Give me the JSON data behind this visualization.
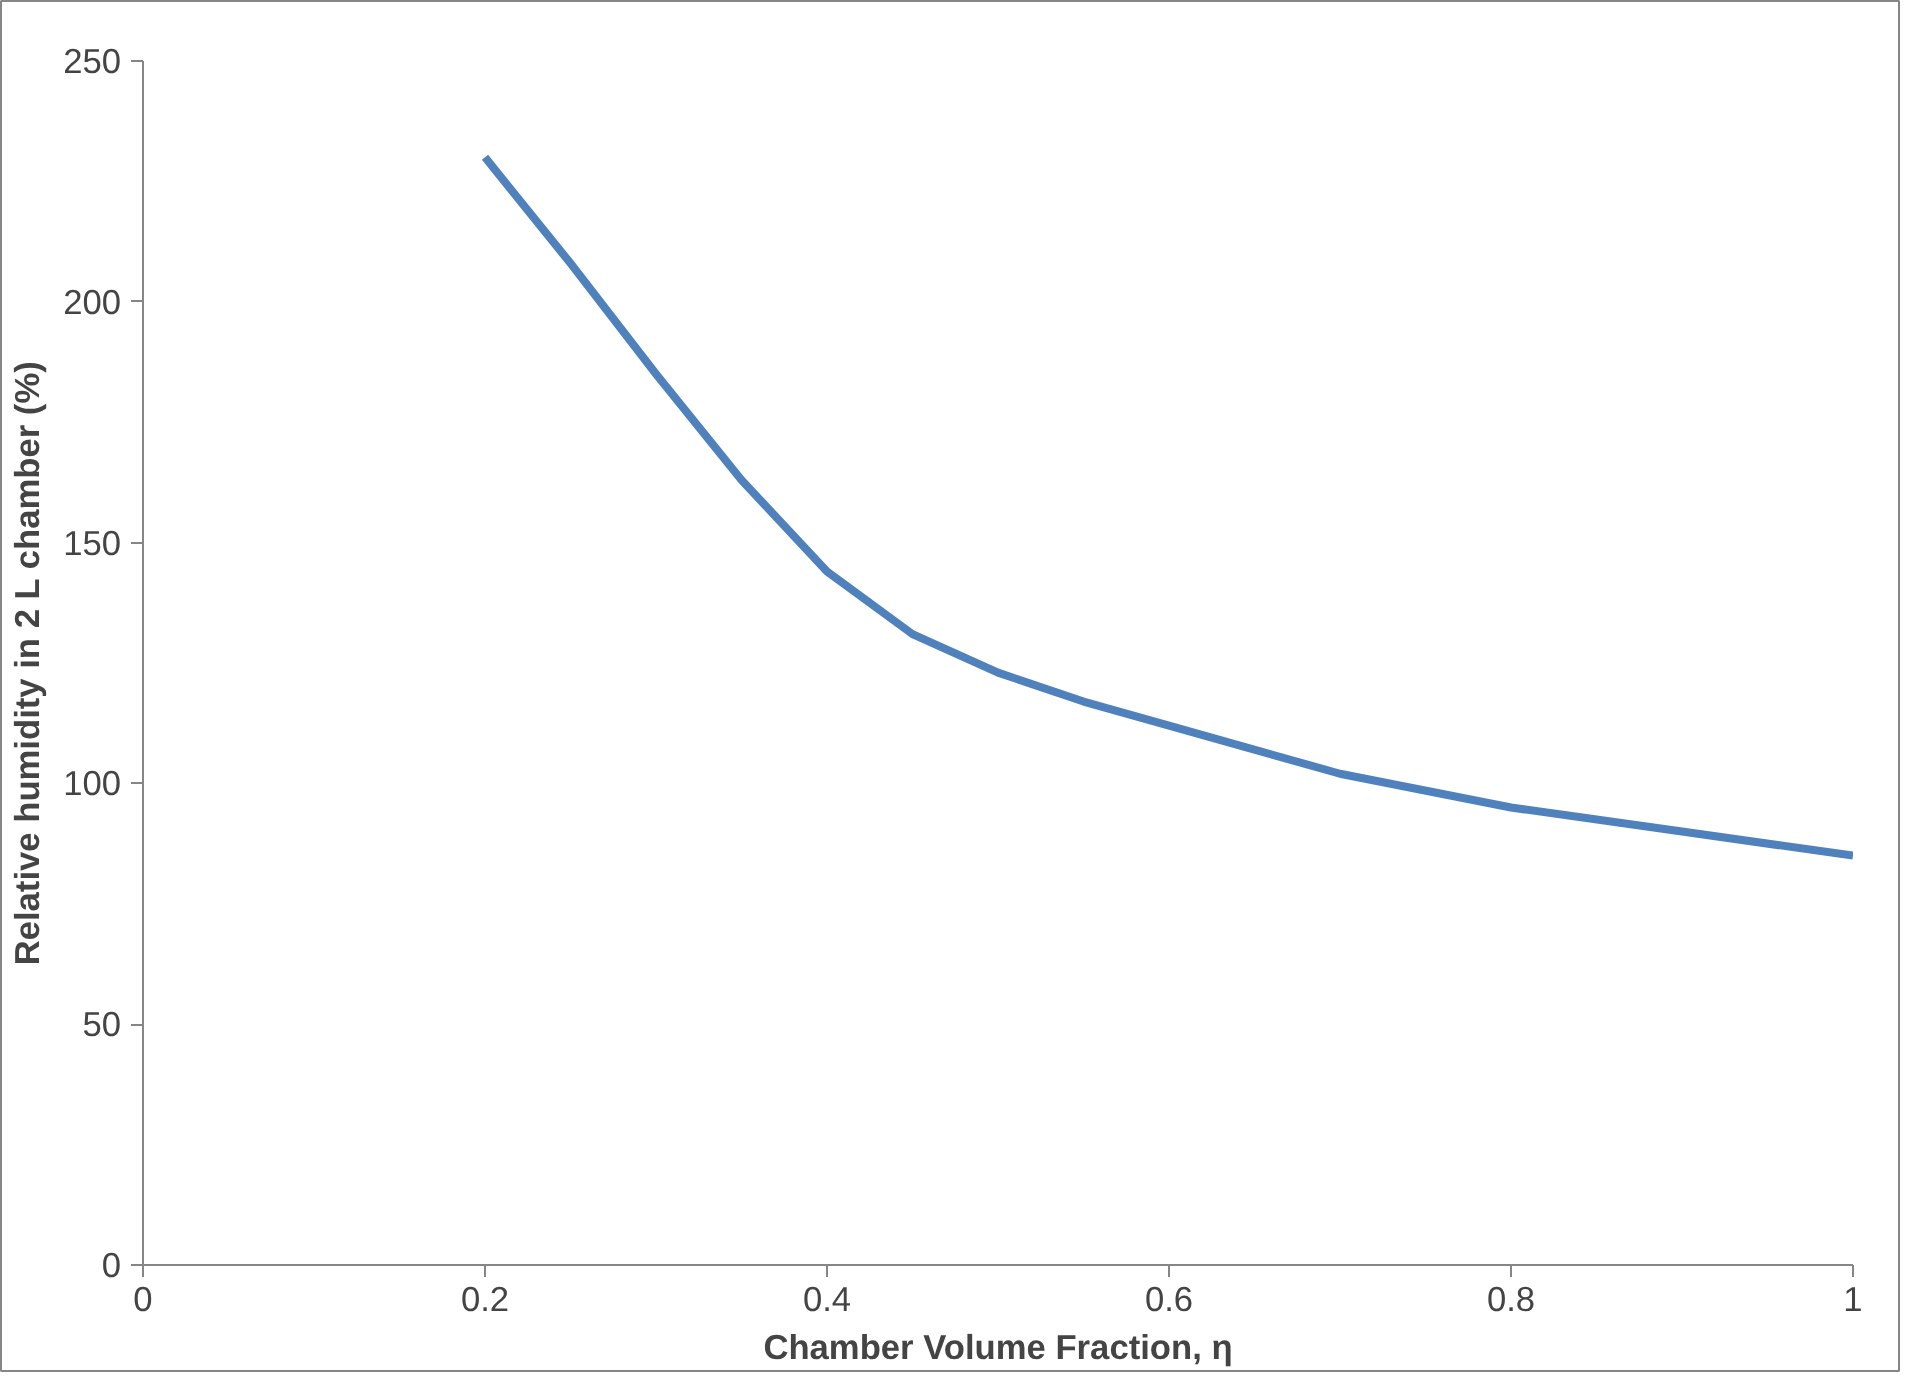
{
  "chart_data": {
    "type": "line",
    "xlabel": "Chamber Volume Fraction, η",
    "ylabel": "Relative humidity in 2 L chamber (%)",
    "x": [
      0.2,
      0.25,
      0.3,
      0.35,
      0.4,
      0.45,
      0.5,
      0.55,
      0.6,
      0.7,
      0.8,
      0.9,
      1.0
    ],
    "series": [
      {
        "color": "#4f81bd",
        "values": [
          230,
          208,
          185,
          163,
          144,
          131,
          123,
          117,
          112,
          102,
          95,
          90,
          85
        ]
      }
    ],
    "xlim": [
      0,
      1
    ],
    "xticks": [
      0,
      0.2,
      0.4,
      0.6,
      0.8,
      1
    ],
    "ylim": [
      0,
      250
    ],
    "yticks": [
      0,
      50,
      100,
      150,
      200,
      250
    ],
    "grid": false,
    "marker": "none",
    "line_style": "solid"
  }
}
